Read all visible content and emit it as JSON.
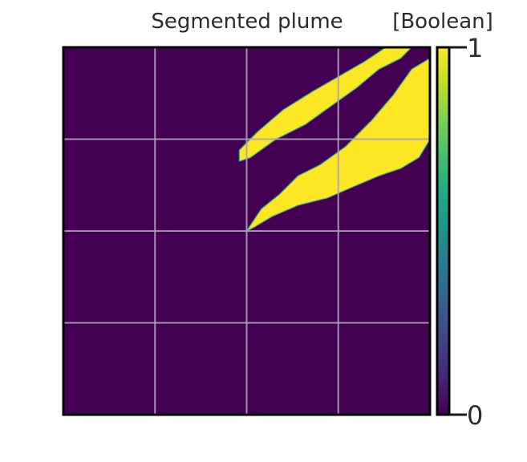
{
  "chart_data": {
    "type": "heatmap",
    "title": "Segmented plume",
    "colorbar_label": "[Boolean]",
    "xlabel": "",
    "ylabel": "",
    "value_range": [
      0,
      1
    ],
    "colorbar_ticks": [
      "0",
      "1"
    ],
    "grid": true,
    "axis_ticks_labeled": false,
    "colormap": "viridis",
    "colors": {
      "low": "#440154",
      "high": "#fde725",
      "grid": "#a9a2b8"
    },
    "grid_size": [
      100,
      100
    ],
    "plume_bands": [
      {
        "name": "upper plume",
        "points": [
          [
            48,
            28
          ],
          [
            53,
            23
          ],
          [
            60,
            17
          ],
          [
            68,
            12
          ],
          [
            75,
            8
          ],
          [
            82,
            4
          ],
          [
            88,
            0
          ],
          [
            95,
            0
          ],
          [
            92,
            3
          ],
          [
            86,
            6
          ],
          [
            80,
            11
          ],
          [
            73,
            16
          ],
          [
            66,
            21
          ],
          [
            58,
            25
          ],
          [
            51,
            30
          ],
          [
            48,
            31
          ]
        ]
      },
      {
        "name": "lower plume",
        "points": [
          [
            50,
            50
          ],
          [
            54,
            44
          ],
          [
            59,
            40
          ],
          [
            64,
            35
          ],
          [
            70,
            32
          ],
          [
            77,
            27
          ],
          [
            84,
            20
          ],
          [
            90,
            13
          ],
          [
            95,
            6
          ],
          [
            100,
            3
          ],
          [
            100,
            25
          ],
          [
            97,
            30
          ],
          [
            92,
            33
          ],
          [
            86,
            35
          ],
          [
            79,
            38
          ],
          [
            72,
            41
          ],
          [
            64,
            43
          ],
          [
            57,
            46
          ],
          [
            52,
            49
          ]
        ]
      }
    ]
  }
}
